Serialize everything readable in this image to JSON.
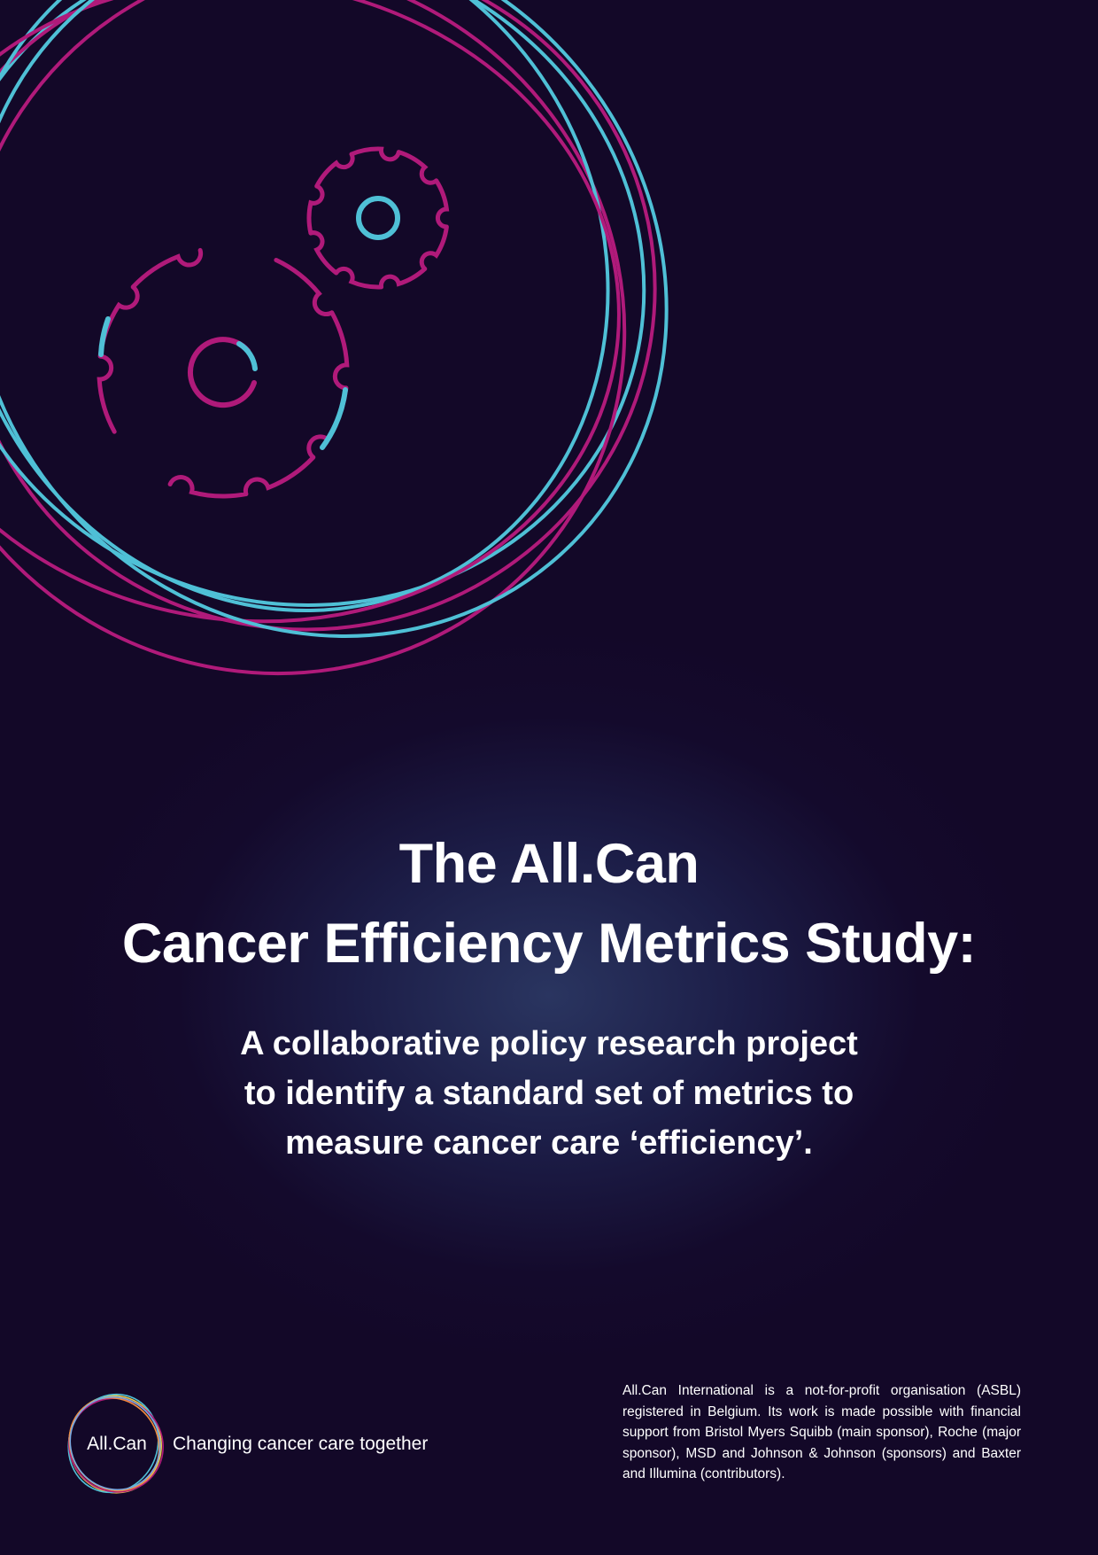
{
  "cover": {
    "title_line1": "The All.Can",
    "title_line2": "Cancer Efficiency Metrics Study:",
    "subtitle": "A collaborative policy research project to identify a standard set of metrics to measure cancer care ‘efficiency’."
  },
  "footer": {
    "logo_text": "All.Can",
    "tagline": "Changing cancer care together",
    "disclaimer": "All.Can International is a not-for-profit organisation (ASBL) registered in Belgium. Its work is made possible with financial support from Bristol Myers Squibb (main sponsor), Roche (major sponsor), MSD and Johnson & Johnson (sponsors) and Baxter and Illumina (contributors)."
  },
  "colors": {
    "background": "#130828",
    "magenta": "#b01a7a",
    "cyan": "#4fc0d6",
    "text": "#ffffff"
  },
  "icons": [
    "gear-icon",
    "orbit-rings",
    "allcan-logo-icon"
  ]
}
